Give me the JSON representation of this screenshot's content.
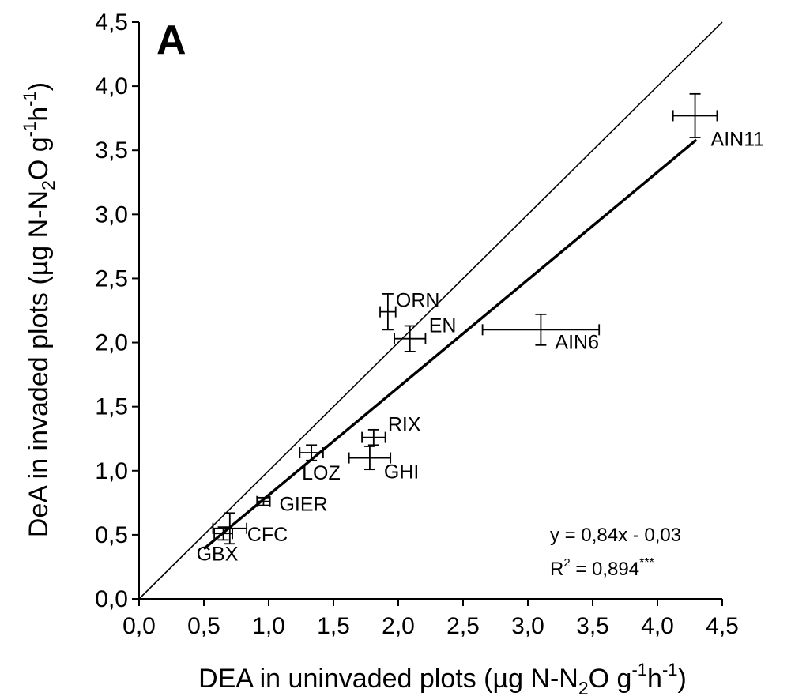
{
  "chart_data": {
    "type": "scatter",
    "panel_label": "A",
    "xlabel": {
      "pre": "DEA in uninvaded plots (µg N-N",
      "sub": "2",
      "mid1": "O g",
      "sup1": "-1",
      "mid2": "h",
      "sup2": "-1",
      "post": ")"
    },
    "ylabel": {
      "pre": "DeA in invaded plots (µg N-N",
      "sub": "2",
      "mid1": "O g",
      "sup1": "-1",
      "mid2": "h",
      "sup2": "-1",
      "post": ")"
    },
    "xlim": [
      0,
      4.5
    ],
    "ylim": [
      0,
      4.5
    ],
    "xticks": [
      "0,0",
      "0,5",
      "1,0",
      "1,5",
      "2,0",
      "2,5",
      "3,0",
      "3,5",
      "4,0",
      "4,5"
    ],
    "yticks": [
      "0,0",
      "0,5",
      "1,0",
      "1,5",
      "2,0",
      "2,5",
      "3,0",
      "3,5",
      "4,0",
      "4,5"
    ],
    "points": [
      {
        "label": "AIN11",
        "x": 4.29,
        "y": 3.77,
        "xerr": 0.17,
        "yerr": 0.17
      },
      {
        "label": "ORN",
        "x": 1.92,
        "y": 2.24,
        "xerr": 0.06,
        "yerr": 0.14
      },
      {
        "label": "EN",
        "x": 2.09,
        "y": 2.03,
        "xerr": 0.12,
        "yerr": 0.1
      },
      {
        "label": "AIN6",
        "x": 3.1,
        "y": 2.1,
        "xerr": 0.45,
        "yerr": 0.12
      },
      {
        "label": "RIX",
        "x": 1.81,
        "y": 1.26,
        "xerr": 0.09,
        "yerr": 0.06
      },
      {
        "label": "GHI",
        "x": 1.78,
        "y": 1.1,
        "xerr": 0.16,
        "yerr": 0.09
      },
      {
        "label": "LOZ",
        "x": 1.33,
        "y": 1.14,
        "xerr": 0.09,
        "yerr": 0.06
      },
      {
        "label": "GIER",
        "x": 0.96,
        "y": 0.76,
        "xerr": 0.05,
        "yerr": 0.03
      },
      {
        "label": "CFC",
        "x": 0.7,
        "y": 0.55,
        "xerr": 0.13,
        "yerr": 0.12
      },
      {
        "label": "GBX",
        "x": 0.65,
        "y": 0.51,
        "xerr": 0.07,
        "yerr": 0.05
      }
    ],
    "one_to_one_line": {
      "from": [
        0,
        0
      ],
      "to": [
        4.5,
        4.5
      ]
    },
    "regression": {
      "slope": 0.84,
      "intercept": -0.03,
      "x_range": [
        0.5,
        4.3
      ],
      "equation": "y = 0,84x - 0,03",
      "r2_prefix": "R",
      "r2_sup": "2",
      "r2_value": " = 0,894",
      "r2_sig": "***"
    }
  }
}
